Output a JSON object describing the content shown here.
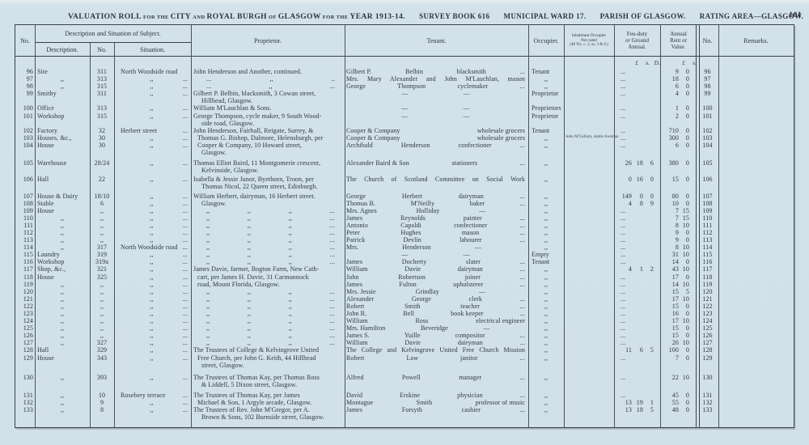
{
  "page": {
    "number": "101"
  },
  "colors": {
    "paper": "#d2e1e9",
    "ink": "#30353e",
    "line": "#4a515b",
    "border": "#3a414b"
  },
  "title": {
    "segments": [
      {
        "text": "VALUATION ROLL",
        "small": false
      },
      {
        "text": "FOR THE",
        "small": true
      },
      {
        "text": "CITY",
        "small": false
      },
      {
        "text": "AND",
        "small": true
      },
      {
        "text": "ROYAL BURGH",
        "small": false
      },
      {
        "text": "OF",
        "small": true
      },
      {
        "text": "GLASGOW",
        "small": false
      },
      {
        "text": "FOR THE",
        "small": true
      },
      {
        "text": "YEAR 1913-14.",
        "small": false
      }
    ],
    "sections": [
      "SURVEY BOOK 616",
      "MUNICIPAL WARD 17.",
      "PARISH OF GLASGOW.",
      "RATING AREA—GLASGOW."
    ]
  },
  "table": {
    "header": {
      "no": "No.",
      "group": "Description and Situation of Subject.",
      "description": "Description.",
      "street_no": "No.",
      "situation": "Situation.",
      "proprietor": "Proprietor.",
      "tenant": "Tenant.",
      "occupier": "Occupier.",
      "inhabitant_line1": "Inhabitant Occupier",
      "inhabitant_line2": "Not rated",
      "inhabitant_line3": "(48 Vic. c. 3, ss. 3 & 9.)",
      "feu_line1": "Feu-duty",
      "feu_line2": "or Ground",
      "feu_line3": "Annual.",
      "annual_line1": "Annual",
      "annual_line2": "Rent or",
      "annual_line3": "Value.",
      "no_repeat": "No.",
      "remarks": "Remarks.",
      "units_feu": {
        "pounds": "£",
        "shillings": "s.",
        "pence": "D."
      },
      "units_annual": {
        "pounds": "£",
        "shillings": "s."
      }
    },
    "rows": [
      {
        "no": "96",
        "d": "Site",
        "sn": "311",
        "sit": "North Woodside road",
        "sd": "",
        "p": [
          "John Henderson and Another, continued."
        ],
        "t": [
          "Gilbert P.",
          "Belbin",
          "blacksmith",
          "..."
        ],
        "o": "Tenant",
        "ih": "",
        "f": "",
        "a": "9 0"
      },
      {
        "no": "97",
        "d": ",,",
        "sn": "313",
        "sit": ",,",
        "sd": "...",
        "pp": [
          "...",
          ",,",
          ".."
        ],
        "t": [
          "Mrs. Mary Alexander and John M'Lauchlan, mason"
        ],
        "o": ",,",
        "ih": "",
        "f": "",
        "a": "18 0"
      },
      {
        "no": "98",
        "d": ",,",
        "sn": "315",
        "sit": ",,",
        "sd": "...",
        "pp": [
          "...",
          ",,",
          "..."
        ],
        "t": [
          "George",
          "Thompson",
          "cyclemaker",
          "..."
        ],
        "o": ",,",
        "ih": "",
        "f": "",
        "a": "6 0"
      },
      {
        "no": "99",
        "d": "Smithy",
        "sn": "311",
        "sit": ",,",
        "sd": "...",
        "p": [
          "Gilbert P. Belbin, blacksmith, 3 Cowan street,",
          "Hillhead, Glasgow."
        ],
        "t": [
          "",
          "—",
          "—",
          ""
        ],
        "o": "Proprietor",
        "ih": "",
        "f": "",
        "a": "4 0"
      },
      {
        "no": "100",
        "d": "Office",
        "sn": "313",
        "sit": ",,",
        "sd": "...",
        "p": [
          "William M'Lauchlan & Sons."
        ],
        "t": [
          "",
          "—",
          "—",
          ""
        ],
        "o": "Proprietors",
        "ih": "",
        "f": "",
        "a": "1 0"
      },
      {
        "no": "101",
        "d": "Workshop",
        "sn": "315",
        "sit": ",,",
        "sd": "...",
        "p": [
          "George Thompson, cycle maker, 9 South Wood-",
          "side road, Glasgow."
        ],
        "t": [
          "",
          "—",
          "—",
          ""
        ],
        "o": "Proprietor",
        "ih": "",
        "f": "",
        "a": "2 0"
      },
      {
        "no": "102",
        "d": "Factory",
        "sn": "32",
        "sit": "Herbert street",
        "sd": "...",
        "p": [
          "John Henderson, Fairhall, Reigate, Surrey, &"
        ],
        "t": [
          "Cooper & Company",
          "wholesale grocers"
        ],
        "o": "Tenant",
        "ih": "",
        "f": "",
        "a": "710 0"
      },
      {
        "no": "103",
        "d": "Houses, &c.,",
        "sn": "30",
        "sit": ",,",
        "sd": "...",
        "p": [
          "Thomas G. Bishop, Dalmore, Helensburgh, per"
        ],
        "pi": 1,
        "t": [
          "Cooper & Company",
          "wholesale grocers"
        ],
        "o": ",,",
        "ih": "John M'Callum, stable foreman",
        "f": "",
        "a": "300 0"
      },
      {
        "no": "104",
        "d": "House",
        "sn": "30",
        "sit": ",,",
        "sd": "...",
        "p": [
          "Cooper & Company, 10 Howard street,",
          "Glasgow."
        ],
        "pi": 1,
        "t": [
          "Archibald",
          "Henderson",
          "confectioner",
          "..."
        ],
        "o": ",,",
        "ih": "",
        "f": "",
        "a": "6 0"
      },
      {
        "no": "105",
        "d": "Warehouse",
        "sn": "28/24",
        "sit": ",,",
        "sd": "...",
        "gap": 4,
        "p": [
          "Thomas Elliot Baird, 11 Montgomerie crescent,",
          "Kelvinside, Glasgow."
        ],
        "t": [
          "Alexander Baird & Son",
          "stationers",
          "..."
        ],
        "o": ",,",
        "ih": "",
        "f": "26 18 6",
        "a": "380 0"
      },
      {
        "no": "106",
        "d": "Hall",
        "sn": "22",
        "sit": ",,",
        "sd": "...",
        "gap": 2,
        "p": [
          "Isabella & Jessie Junor, Byethorn, Troon, per",
          "Thomas Nicol, 22 Queen street, Edinburgh."
        ],
        "t": [
          "The Church of Scotland Committee on Social Work"
        ],
        "o": ",,",
        "ih": "",
        "f": "0 16 0",
        "a": "15 0"
      },
      {
        "no": "107",
        "d": "House & Dairy",
        "sn": "18/10",
        "sit": ",,",
        "sd": "...",
        "gap": 2,
        "p": [
          "William Herbert, dairyman, 16 Herbert street."
        ],
        "t": [
          "George",
          "Herbert",
          "dairyman",
          "..."
        ],
        "o": ",,",
        "ih": "",
        "f": "149 0 0",
        "a": "80 0"
      },
      {
        "no": "108",
        "d": "Stable",
        "sn": "6",
        "sit": ",,",
        "sd": "...",
        "p": [
          "Glasgow."
        ],
        "pi": 2,
        "t": [
          "Thomas B.",
          "M'Neilly",
          "baker",
          "..."
        ],
        "o": ",,",
        "ih": "",
        "f": "4 8 9",
        "a": "10 0"
      },
      {
        "no": "109",
        "d": "House",
        "sn": ",,",
        "sit": ",,",
        "sd": "...",
        "pp": [
          ",,",
          ",,",
          ",,",
          "..."
        ],
        "t": [
          "Mrs. Agnes",
          "Holliday",
          "—",
          ""
        ],
        "o": ",,",
        "ih": "",
        "f": "",
        "a": "7 15"
      },
      {
        "no": "110",
        "d": ",,",
        "sn": ",,",
        "sit": ",,",
        "sd": "...",
        "pp": [
          ",,",
          ",,",
          ",,",
          "..."
        ],
        "t": [
          "James",
          "Reynolds",
          "painter",
          "..."
        ],
        "o": ",,",
        "ih": "",
        "f": "",
        "a": "7 15"
      },
      {
        "no": "111",
        "d": ",,",
        "sn": ",,",
        "sit": ",,",
        "sd": "...",
        "pp": [
          ",,",
          ",,",
          ",,",
          "..."
        ],
        "t": [
          "Antonio",
          "Capaldi",
          "confectioner",
          "..."
        ],
        "o": ",,",
        "ih": "",
        "f": "",
        "a": "8 10"
      },
      {
        "no": "112",
        "d": ",,",
        "sn": ",,",
        "sit": ",,",
        "sd": "...",
        "pp": [
          ",,",
          ",,",
          ",,",
          "..."
        ],
        "t": [
          "Peter",
          "Hughes",
          "mason",
          "..."
        ],
        "o": ",,",
        "ih": "",
        "f": "",
        "a": "9 0"
      },
      {
        "no": "113",
        "d": ",,",
        "sn": ",,",
        "sit": ",,",
        "sd": "...",
        "pp": [
          ",,",
          ",,",
          ",,",
          "..."
        ],
        "t": [
          "Patrick",
          "Devlin",
          "labourer",
          "..."
        ],
        "o": ",,",
        "ih": "",
        "f": "",
        "a": "9 0"
      },
      {
        "no": "114",
        "d": ",,",
        "sn": "317",
        "sit": "North Woodside road",
        "sd": "...",
        "pp": [
          ",,",
          ",,",
          ",,",
          "..."
        ],
        "t": [
          "Mrs.",
          "Henderson",
          "—",
          ""
        ],
        "o": ",,",
        "ih": "",
        "f": "",
        "a": "8 10"
      },
      {
        "no": "115",
        "d": "Laundry",
        "sn": "319",
        "sit": ",,",
        "sd": "...",
        "pp": [
          ",,",
          ",,",
          ",,",
          "..."
        ],
        "t": [
          "",
          "—",
          "—",
          ""
        ],
        "o": "Empty",
        "ih": "",
        "f": "",
        "a": "31 10"
      },
      {
        "no": "116",
        "d": "Workshop",
        "sn": "319a",
        "sit": ",,",
        "sd": "...",
        "pp": [
          ",,",
          ",,",
          ",,",
          "..."
        ],
        "t": [
          "James",
          "Docherty",
          "slater",
          "..."
        ],
        "o": "Tenant",
        "ih": "",
        "f": "",
        "a": "14 0"
      },
      {
        "no": "117",
        "d": "Shop, &c.,",
        "sn": "321",
        "sit": ",,",
        "sd": "...",
        "p": [
          "James Davie, farmer, Bogton Farm, New Cath-"
        ],
        "t": [
          "William",
          "Davie",
          "dairyman",
          "..."
        ],
        "o": ",,",
        "ih": "",
        "f": "4 1 2",
        "a": "43 10"
      },
      {
        "no": "118",
        "d": "House",
        "sn": "325",
        "sit": ",,",
        "sd": "...",
        "p": [
          "cart, per James H. Davie, 31 Carmunnock"
        ],
        "pi": 1,
        "t": [
          "John",
          "Robertson",
          "joiner",
          "..."
        ],
        "o": ",,",
        "ih": "",
        "f": "",
        "a": "17 0"
      },
      {
        "no": "119",
        "d": ",,",
        "sn": ",,",
        "sit": ",,",
        "sd": "...",
        "p": [
          "road, Mount Florida, Glasgow."
        ],
        "pi": 1,
        "t": [
          "James",
          "Fulton",
          "upholsterer",
          "..."
        ],
        "o": ",,",
        "ih": "",
        "f": "",
        "a": "14 10"
      },
      {
        "no": "120",
        "d": ",,",
        "sn": ",,",
        "sit": ",,",
        "sd": "...",
        "pp": [
          ",,",
          ",,",
          ",,",
          "..."
        ],
        "t": [
          "Mrs. Jessie",
          "Grindlay",
          "—",
          ""
        ],
        "o": ",,",
        "ih": "",
        "f": "",
        "a": "15 5"
      },
      {
        "no": "121",
        "d": ",,",
        "sn": ",,",
        "sit": ",,",
        "sd": "...",
        "pp": [
          ",,",
          ",,",
          ",,",
          "..."
        ],
        "t": [
          "Alexander",
          "George",
          "clerk",
          "..."
        ],
        "o": ",,",
        "ih": "",
        "f": "",
        "a": "17 10"
      },
      {
        "no": "122",
        "d": ",,",
        "sn": ",,",
        "sit": ",,",
        "sd": "...",
        "pp": [
          ",,",
          ",,",
          ",,",
          "..."
        ],
        "t": [
          "Robert",
          "Smith",
          "teacher",
          "..."
        ],
        "o": ",,",
        "ih": "",
        "f": "",
        "a": "15 0"
      },
      {
        "no": "123",
        "d": ",,",
        "sn": ",,",
        "sit": ",,",
        "sd": "...",
        "pp": [
          ",,",
          ",,",
          ",,",
          "..."
        ],
        "t": [
          "John R.",
          "Bell",
          "book keeper",
          "..."
        ],
        "o": ",,",
        "ih": "",
        "f": "",
        "a": "16 0"
      },
      {
        "no": "124",
        "d": ",,",
        "sn": ",,",
        "sit": ",,",
        "sd": "...",
        "pp": [
          ",,",
          ",,",
          ",,",
          "..."
        ],
        "t": [
          "William",
          "Ross",
          "electrical engineer"
        ],
        "o": ",,",
        "ih": "",
        "f": "",
        "a": "17 10"
      },
      {
        "no": "125",
        "d": ",,",
        "sn": ",,",
        "sit": ",,",
        "sd": "...",
        "pp": [
          ",,",
          ",,",
          ",,",
          "..."
        ],
        "t": [
          "Mrs. Hamilton",
          "Beveridge",
          "—",
          ""
        ],
        "o": ",,",
        "ih": "",
        "f": "",
        "a": "15 0"
      },
      {
        "no": "126",
        "d": ",,",
        "sn": ",,",
        "sit": ",,",
        "sd": "...",
        "pp": [
          ",,",
          ",,",
          ",,",
          "..."
        ],
        "t": [
          "James S.",
          "Yuille",
          "compositor",
          "..."
        ],
        "o": ",,",
        "ih": "",
        "f": "",
        "a": "15 0"
      },
      {
        "no": "127",
        "d": ",,",
        "sn": "327",
        "sit": ",,",
        "sd": "...",
        "pp": [
          ",,",
          ",,",
          ",,",
          "..."
        ],
        "t": [
          "William",
          "Davie",
          "dairyman",
          "..."
        ],
        "o": ",,",
        "ih": "",
        "f": "",
        "a": "26 10"
      },
      {
        "no": "128",
        "d": "Hall",
        "sn": "329",
        "sit": ",,",
        "sd": "...",
        "p": [
          "The Trustees of College & Kelvingrove United"
        ],
        "t": [
          "The College and Kelvingrove United Free Church Mission"
        ],
        "o": ",,",
        "ih": "",
        "f": "11 6 5",
        "a": "100 0"
      },
      {
        "no": "129",
        "d": "House",
        "sn": "343",
        "sit": ",,",
        "sd": "...",
        "p": [
          "Free Church, per John G. Keith, 44 Hillhead",
          "street, Glasgow."
        ],
        "pi": 1,
        "t": [
          "Robert",
          "Law",
          "janitor",
          "..."
        ],
        "o": ",,",
        "ih": "",
        "f": "",
        "a": "7 0"
      },
      {
        "no": "130",
        "d": ",,",
        "sn": "393",
        "sit": ",,",
        "sd": "...",
        "gap": 6,
        "p": [
          "The Trustees of Thomas Kay, per Thomas Ross",
          "& Liddell, 5 Dixon street, Glasgow."
        ],
        "t": [
          "Alfred",
          "Powell",
          "manager",
          "..."
        ],
        "o": ",,",
        "ih": "",
        "f": "",
        "a": "22 10"
      },
      {
        "no": "131",
        "d": ",,",
        "sn": "10",
        "sit": "Rosebery terrace",
        "sd": "...",
        "gap": 4,
        "p": [
          "The Trustees of Thomas Kay, per James"
        ],
        "t": [
          "David",
          "Erskine",
          "physician",
          "..."
        ],
        "o": ",,",
        "ih": "",
        "f": "",
        "a": "45 0"
      },
      {
        "no": "132",
        "d": ",,",
        "sn": "9",
        "sit": ",,",
        "sd": "...",
        "p": [
          "Michael & Son, 1 Argyle arcade, Glasgow."
        ],
        "pi": 1,
        "t": [
          "Montague",
          "Smith",
          "professor of music"
        ],
        "o": ",,",
        "ih": "",
        "f": "13 19 1",
        "a": "55 0"
      },
      {
        "no": "133",
        "d": ",,",
        "sn": "8",
        "sit": ",,",
        "sd": "...",
        "p": [
          "The Trustees of Rev. John M'Gregor, per A.",
          "Brown & Sons, 102 Burnside street, Glasgow."
        ],
        "t": [
          "James",
          "Forsyth",
          "cashier",
          "..."
        ],
        "o": ",,",
        "ih": "",
        "f": "13 18 5",
        "a": "48 0"
      }
    ]
  }
}
